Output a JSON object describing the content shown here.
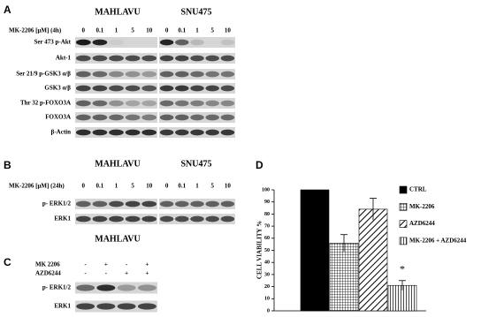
{
  "panel_a": {
    "label": "A",
    "cell_lines": [
      "MAHLAVU",
      "SNU475"
    ],
    "treatment": "MK-2206 [μM]  (4h)",
    "doses": [
      0,
      0.1,
      1,
      5,
      10
    ],
    "rows": [
      "Ser 473 p-Akt",
      "Akt-1",
      "Ser 21/9 p-GSK3 α/β",
      "GSK3 α/β",
      "Thr 32 p-FOXO3A",
      "FOXO3A",
      "β-Actin"
    ]
  },
  "panel_b": {
    "label": "B",
    "cell_lines": [
      "MAHLAVU",
      "SNU475"
    ],
    "treatment": "MK-2206 [μM]  (24h)",
    "doses": [
      0,
      0.1,
      1,
      5,
      10
    ],
    "rows": [
      "p- ERK1/2",
      "ERK1"
    ]
  },
  "panel_c": {
    "label": "C",
    "cell_line": "MAHLAVU",
    "treatments": [
      {
        "name": "MK 2206",
        "signs": [
          "-",
          "+",
          "-",
          "+"
        ]
      },
      {
        "name": "AZD6244",
        "signs": [
          "-",
          "-",
          "+",
          "+"
        ]
      }
    ],
    "rows": [
      "p- ERK1/2",
      "ERK1"
    ]
  },
  "chart_data": {
    "type": "bar",
    "panel_label": "D",
    "y_label": "CELL VIABILITY %",
    "ylim": [
      0,
      100
    ],
    "yticks": [
      0,
      10,
      20,
      30,
      40,
      50,
      60,
      70,
      80,
      90,
      100
    ],
    "series": [
      {
        "name": "CTRL",
        "color": "#000000",
        "pattern": "solid",
        "values": [
          100
        ]
      },
      {
        "name": "MK-2206",
        "color": "#000000",
        "pattern": "grid",
        "values": [
          56
        ],
        "errors": [
          7
        ]
      },
      {
        "name": "AZD6244",
        "color": "#000000",
        "pattern": "diagonal",
        "values": [
          84
        ],
        "errors": [
          9
        ]
      },
      {
        "name": "MK-2206 + AZD6244",
        "color": "#000000",
        "pattern": "vertical",
        "values": [
          21
        ],
        "errors": [
          4
        ]
      }
    ],
    "annotation": "*"
  }
}
